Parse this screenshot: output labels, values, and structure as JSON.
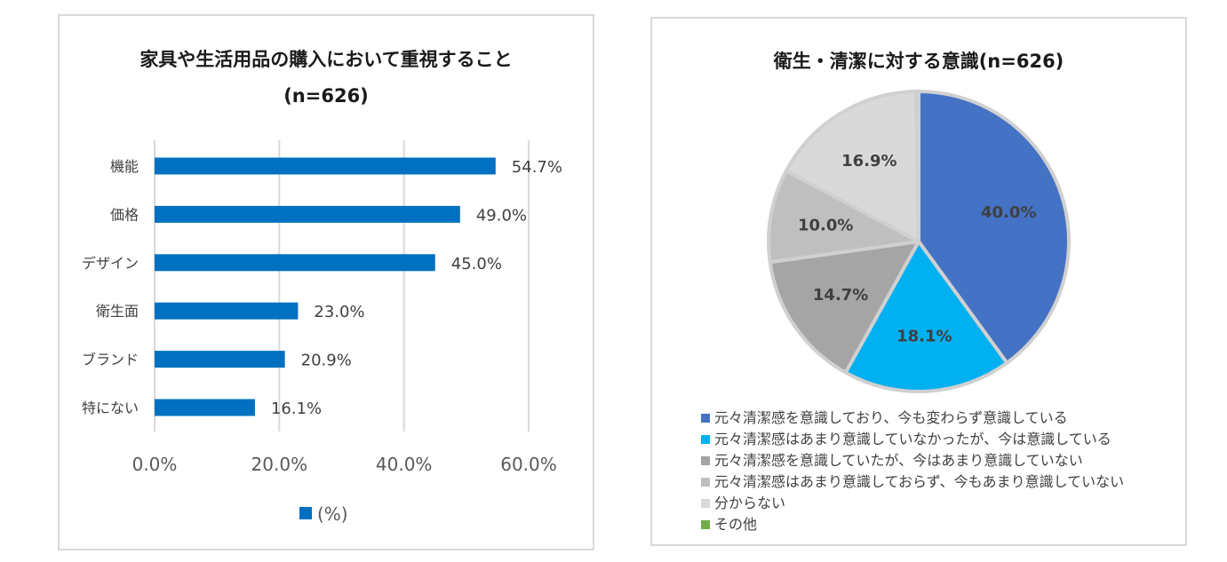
{
  "chart_data": [
    {
      "type": "bar",
      "orientation": "horizontal",
      "title": "家具や生活用品の購入において重視すること",
      "subtitle": "(n=626)",
      "categories": [
        "機能",
        "価格",
        "デザイン",
        "衛生面",
        "ブランド",
        "特にない"
      ],
      "values": [
        54.7,
        49.0,
        45.0,
        23.0,
        20.9,
        16.1
      ],
      "value_labels": [
        "54.7%",
        "49.0%",
        "45.0%",
        "23.0%",
        "20.9%",
        "16.1%"
      ],
      "xlim": [
        0,
        60
      ],
      "xticks": [
        0,
        20,
        40,
        60
      ],
      "xtick_labels": [
        "0.0%",
        "20.0%",
        "40.0%",
        "60.0%"
      ],
      "grid": true,
      "legend": "bottom",
      "legend_label": "(%)",
      "color": "#0070c0"
    },
    {
      "type": "pie",
      "title": "衛生・清潔に対する意識(n=626)",
      "labels": [
        "元々清潔感を意識しており、今も変わらず意識している",
        "元々清潔感はあまり意識していなかったが、今は意識している",
        "元々清潔感を意識していたが、今はあまり意識していない",
        "元々清潔感はあまり意識しておらず、今もあまり意識していない",
        "分からない",
        "その他"
      ],
      "values": [
        40.0,
        18.1,
        14.7,
        10.0,
        16.9,
        0.3
      ],
      "value_labels": [
        "40.0%",
        "18.1%",
        "14.7%",
        "10.0%",
        "16.9%",
        ""
      ],
      "colors": [
        "#4472c4",
        "#00b0f0",
        "#a5a5a5",
        "#bfbfbf",
        "#d9d9d9",
        "#70ad47"
      ],
      "legend": "bottom-left"
    }
  ]
}
